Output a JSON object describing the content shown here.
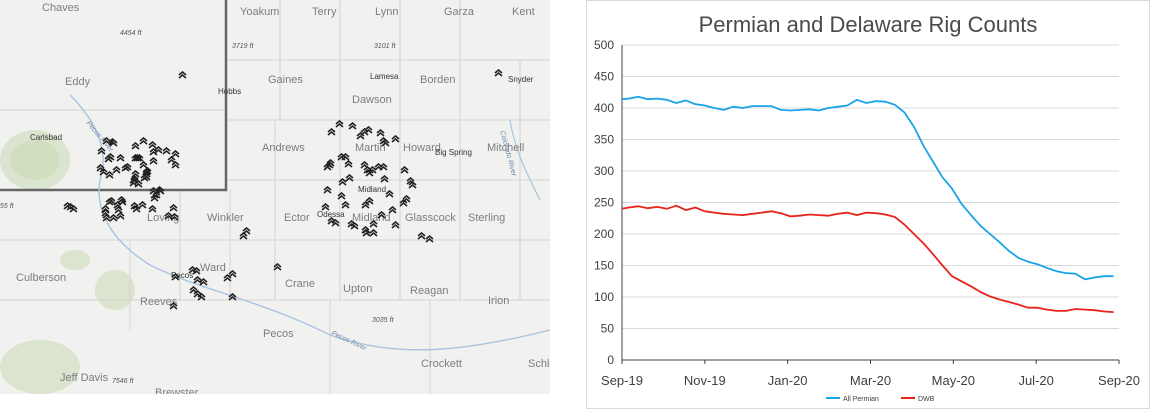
{
  "map": {
    "county_labels": [
      {
        "text": "Chaves"
      },
      {
        "text": "Yoakum"
      },
      {
        "text": "Terry"
      },
      {
        "text": "Lynn"
      },
      {
        "text": "Garza"
      },
      {
        "text": "Kent"
      },
      {
        "text": "Eddy"
      },
      {
        "text": "Gaines"
      },
      {
        "text": "Dawson"
      },
      {
        "text": "Borden"
      },
      {
        "text": "Andrews"
      },
      {
        "text": "Martin"
      },
      {
        "text": "Howard"
      },
      {
        "text": "Mitchell"
      },
      {
        "text": "Loving"
      },
      {
        "text": "Winkler"
      },
      {
        "text": "Ector"
      },
      {
        "text": "Midland"
      },
      {
        "text": "Glasscock"
      },
      {
        "text": "Sterling"
      },
      {
        "text": "Culberson"
      },
      {
        "text": "Ward"
      },
      {
        "text": "Crane"
      },
      {
        "text": "Upton"
      },
      {
        "text": "Reagan"
      },
      {
        "text": "Irion"
      },
      {
        "text": "Reeves"
      },
      {
        "text": "Pecos"
      },
      {
        "text": "Crockett"
      },
      {
        "text": "Schle"
      },
      {
        "text": "Jeff Davis"
      },
      {
        "text": "Brewster"
      }
    ],
    "city_labels": [
      {
        "text": "Hobbs"
      },
      {
        "text": "Lamesa"
      },
      {
        "text": "Snyder"
      },
      {
        "text": "Carlsbad"
      },
      {
        "text": "Big Spring"
      },
      {
        "text": "Midland"
      },
      {
        "text": "Odessa"
      },
      {
        "text": "Pecos"
      }
    ],
    "elevation_labels": [
      {
        "text": "4454 ft"
      },
      {
        "text": "3719 ft"
      },
      {
        "text": "3101 ft"
      },
      {
        "text": "3035 ft"
      },
      {
        "text": "7546 ft"
      },
      {
        "text": "55 ft"
      }
    ],
    "river_labels": [
      {
        "text": "Pecos River"
      },
      {
        "text": "Pecos River"
      },
      {
        "text": "Colorado River"
      }
    ],
    "rig_count_shown": 130,
    "colors": {
      "background": "#f1f1ef",
      "border": "#666666",
      "rig_icon": "#222222"
    }
  },
  "chart_data": {
    "type": "line",
    "title": "Permian and Delaware Rig Counts",
    "x_tick_labels": [
      "Sep-19",
      "Nov-19",
      "Jan-20",
      "Mar-20",
      "May-20",
      "Jul-20",
      "Sep-20"
    ],
    "x_range": [
      "2019-09-01",
      "2020-09-01"
    ],
    "ylim": [
      0,
      500
    ],
    "y_ticks": [
      0,
      50,
      100,
      150,
      200,
      250,
      300,
      350,
      400,
      450,
      500
    ],
    "grid": "horizontal",
    "legend_position": "bottom",
    "series": [
      {
        "name": "All Permian",
        "color": "#1aa3e8",
        "points": [
          [
            "2019-09-01",
            414
          ],
          [
            "2019-09-06",
            415
          ],
          [
            "2019-09-13",
            418
          ],
          [
            "2019-09-20",
            414
          ],
          [
            "2019-09-27",
            415
          ],
          [
            "2019-10-04",
            413
          ],
          [
            "2019-10-11",
            408
          ],
          [
            "2019-10-18",
            412
          ],
          [
            "2019-10-25",
            406
          ],
          [
            "2019-11-01",
            404
          ],
          [
            "2019-11-08",
            400
          ],
          [
            "2019-11-15",
            397
          ],
          [
            "2019-11-22",
            402
          ],
          [
            "2019-11-29",
            400
          ],
          [
            "2019-12-06",
            403
          ],
          [
            "2019-12-13",
            403
          ],
          [
            "2019-12-20",
            403
          ],
          [
            "2019-12-27",
            397
          ],
          [
            "2020-01-03",
            396
          ],
          [
            "2020-01-10",
            397
          ],
          [
            "2020-01-17",
            398
          ],
          [
            "2020-01-24",
            396
          ],
          [
            "2020-01-31",
            400
          ],
          [
            "2020-02-07",
            402
          ],
          [
            "2020-02-14",
            404
          ],
          [
            "2020-02-21",
            413
          ],
          [
            "2020-02-28",
            408
          ],
          [
            "2020-03-06",
            411
          ],
          [
            "2020-03-13",
            410
          ],
          [
            "2020-03-20",
            405
          ],
          [
            "2020-03-27",
            393
          ],
          [
            "2020-04-03",
            370
          ],
          [
            "2020-04-10",
            340
          ],
          [
            "2020-04-17",
            315
          ],
          [
            "2020-04-24",
            290
          ],
          [
            "2020-05-01",
            272
          ],
          [
            "2020-05-08",
            248
          ],
          [
            "2020-05-15",
            230
          ],
          [
            "2020-05-22",
            213
          ],
          [
            "2020-05-29",
            200
          ],
          [
            "2020-06-05",
            187
          ],
          [
            "2020-06-12",
            173
          ],
          [
            "2020-06-19",
            162
          ],
          [
            "2020-06-26",
            156
          ],
          [
            "2020-07-03",
            152
          ],
          [
            "2020-07-10",
            146
          ],
          [
            "2020-07-17",
            141
          ],
          [
            "2020-07-24",
            138
          ],
          [
            "2020-07-31",
            137
          ],
          [
            "2020-08-07",
            128
          ],
          [
            "2020-08-14",
            131
          ],
          [
            "2020-08-21",
            133
          ],
          [
            "2020-08-28",
            133
          ]
        ]
      },
      {
        "name": "DWB",
        "color": "#e8231b",
        "points": [
          [
            "2019-09-01",
            240
          ],
          [
            "2019-09-06",
            242
          ],
          [
            "2019-09-13",
            244
          ],
          [
            "2019-09-20",
            241
          ],
          [
            "2019-09-27",
            243
          ],
          [
            "2019-10-04",
            240
          ],
          [
            "2019-10-11",
            245
          ],
          [
            "2019-10-18",
            238
          ],
          [
            "2019-10-25",
            242
          ],
          [
            "2019-11-01",
            236
          ],
          [
            "2019-11-08",
            234
          ],
          [
            "2019-11-15",
            232
          ],
          [
            "2019-11-22",
            231
          ],
          [
            "2019-11-29",
            230
          ],
          [
            "2019-12-06",
            232
          ],
          [
            "2019-12-13",
            234
          ],
          [
            "2019-12-20",
            236
          ],
          [
            "2019-12-27",
            233
          ],
          [
            "2020-01-03",
            228
          ],
          [
            "2020-01-10",
            229
          ],
          [
            "2020-01-17",
            231
          ],
          [
            "2020-01-24",
            230
          ],
          [
            "2020-01-31",
            229
          ],
          [
            "2020-02-07",
            232
          ],
          [
            "2020-02-14",
            234
          ],
          [
            "2020-02-21",
            230
          ],
          [
            "2020-02-28",
            234
          ],
          [
            "2020-03-06",
            233
          ],
          [
            "2020-03-13",
            231
          ],
          [
            "2020-03-20",
            227
          ],
          [
            "2020-03-27",
            215
          ],
          [
            "2020-04-03",
            200
          ],
          [
            "2020-04-10",
            185
          ],
          [
            "2020-04-17",
            168
          ],
          [
            "2020-04-24",
            150
          ],
          [
            "2020-05-01",
            133
          ],
          [
            "2020-05-08",
            125
          ],
          [
            "2020-05-15",
            117
          ],
          [
            "2020-05-22",
            108
          ],
          [
            "2020-05-29",
            101
          ],
          [
            "2020-06-05",
            96
          ],
          [
            "2020-06-12",
            92
          ],
          [
            "2020-06-19",
            88
          ],
          [
            "2020-06-26",
            83
          ],
          [
            "2020-07-03",
            83
          ],
          [
            "2020-07-10",
            80
          ],
          [
            "2020-07-17",
            78
          ],
          [
            "2020-07-24",
            78
          ],
          [
            "2020-07-31",
            81
          ],
          [
            "2020-08-07",
            80
          ],
          [
            "2020-08-14",
            79
          ],
          [
            "2020-08-21",
            77
          ],
          [
            "2020-08-28",
            76
          ]
        ]
      }
    ]
  }
}
